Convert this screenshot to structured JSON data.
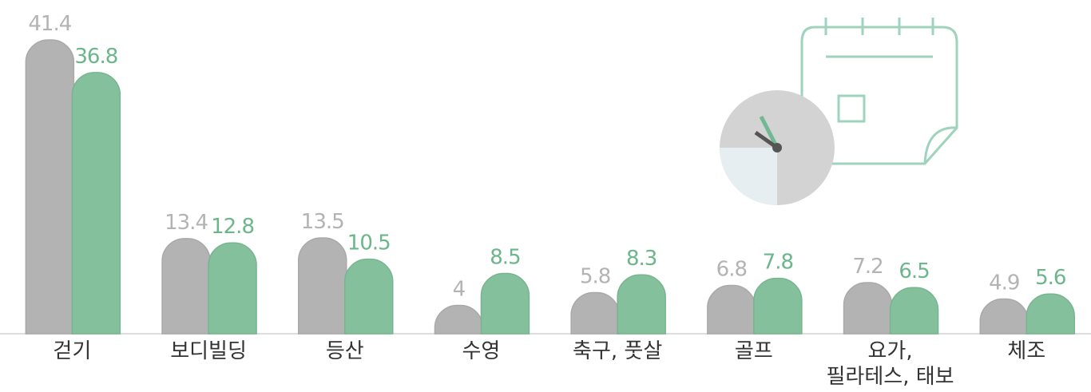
{
  "chart_data": {
    "type": "bar",
    "categories": [
      "걷기",
      "보디빌딩",
      "등산",
      "수영",
      "축구, 풋살",
      "골프",
      "요가,\n필라테스, 태보",
      "체조"
    ],
    "series": [
      {
        "color": "#b3b3b3",
        "values": [
          41.4,
          13.4,
          13.5,
          4.0,
          5.8,
          6.8,
          7.2,
          4.9
        ]
      },
      {
        "color": "#84c09c",
        "values": [
          36.8,
          12.8,
          10.5,
          8.5,
          8.3,
          7.8,
          6.5,
          5.6
        ]
      }
    ],
    "label_colors": [
      "#b3b3b3",
      "#6bb68a"
    ],
    "ylim": [
      0,
      45
    ]
  }
}
